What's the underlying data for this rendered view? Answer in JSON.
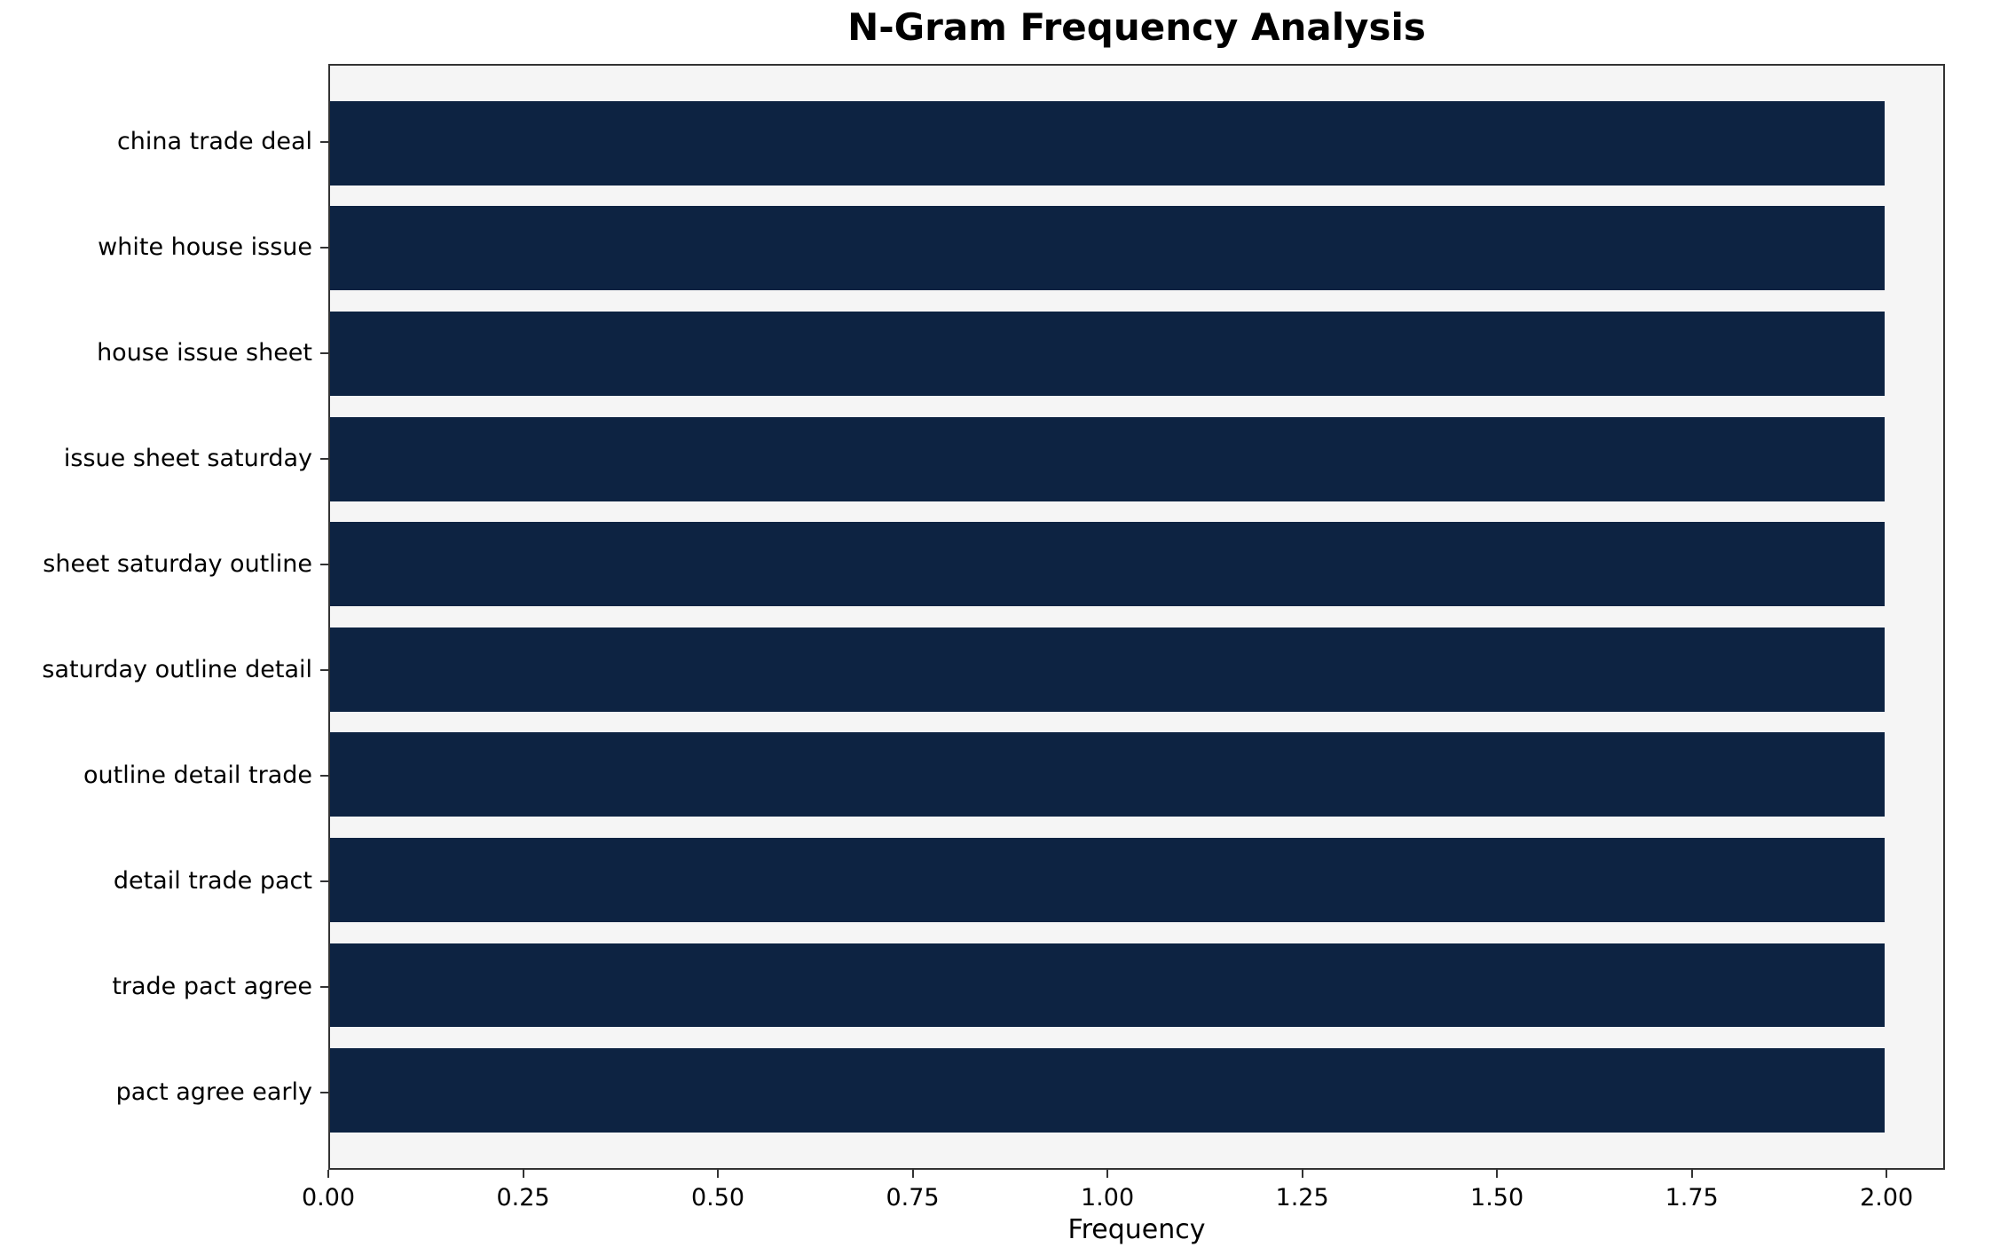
{
  "chart_data": {
    "type": "bar",
    "orientation": "horizontal",
    "title": "N-Gram Frequency Analysis",
    "xlabel": "Frequency",
    "ylabel": "",
    "categories": [
      "china trade deal",
      "white house issue",
      "house issue sheet",
      "issue sheet saturday",
      "sheet saturday outline",
      "saturday outline detail",
      "outline detail trade",
      "detail trade pact",
      "trade pact agree",
      "pact agree early"
    ],
    "values": [
      2,
      2,
      2,
      2,
      2,
      2,
      2,
      2,
      2,
      2
    ],
    "xlim": [
      0,
      2.075
    ],
    "x_ticks": [
      {
        "label": "0.00",
        "value": 0.0
      },
      {
        "label": "0.25",
        "value": 0.25
      },
      {
        "label": "0.50",
        "value": 0.5
      },
      {
        "label": "0.75",
        "value": 0.75
      },
      {
        "label": "1.00",
        "value": 1.0
      },
      {
        "label": "1.25",
        "value": 1.25
      },
      {
        "label": "1.50",
        "value": 1.5
      },
      {
        "label": "1.75",
        "value": 1.75
      },
      {
        "label": "2.00",
        "value": 2.0
      }
    ],
    "grid": false,
    "legend": "none",
    "bar_color": "#0d2342",
    "plot_background": "#f5f5f5"
  }
}
